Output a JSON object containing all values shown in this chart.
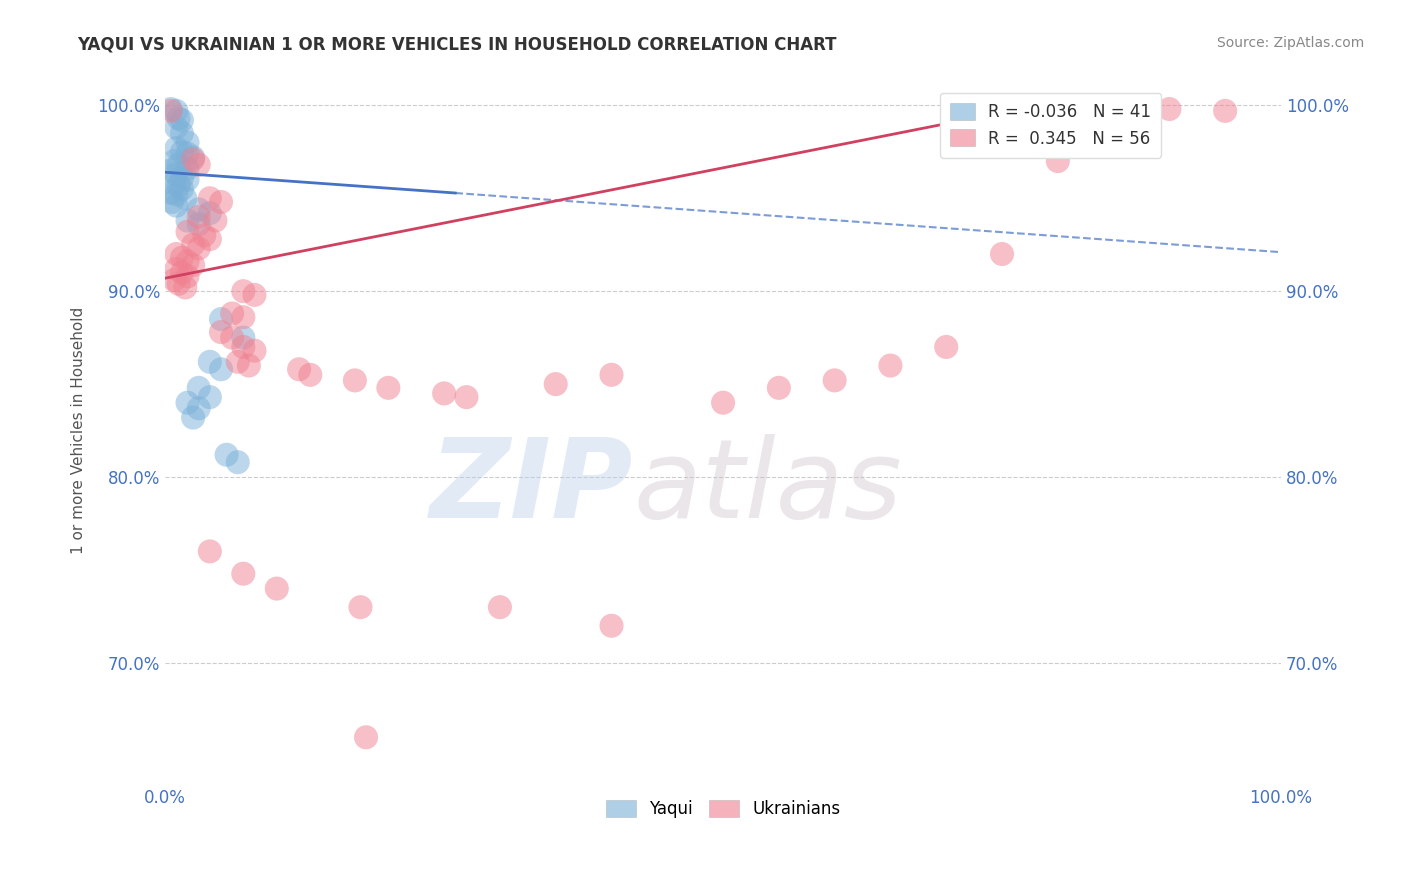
{
  "title": "YAQUI VS UKRAINIAN 1 OR MORE VEHICLES IN HOUSEHOLD CORRELATION CHART",
  "source_text": "Source: ZipAtlas.com",
  "ylabel": "1 or more Vehicles in Household",
  "xlim": [
    0.0,
    100.0
  ],
  "ylim": [
    0.635,
    1.015
  ],
  "yticks": [
    0.7,
    0.8,
    0.9,
    1.0
  ],
  "xticks": [
    0.0,
    100.0
  ],
  "x_tick_labels": [
    "0.0%",
    "100.0%"
  ],
  "y_tick_labels": [
    "70.0%",
    "80.0%",
    "90.0%",
    "100.0%"
  ],
  "yaqui_color": "#7ab0d8",
  "ukrainian_color": "#f08090",
  "trend_yaqui_color": "#4472c4",
  "trend_ukrainian_color": "#d04060",
  "background_color": "#ffffff",
  "grid_color": "#cccccc",
  "watermark_zip_color": "#b8cfe8",
  "watermark_atlas_color": "#c8b8c0",
  "tick_color": "#4472c4",
  "title_color": "#333333",
  "source_color": "#888888",
  "ylabel_color": "#555555",
  "legend_R_yaqui_color": "#1a6aaa",
  "legend_R_ukr_color": "#c03050",
  "legend_N_color": "#1a6aaa",
  "yaqui_R": -0.036,
  "yaqui_N": 41,
  "ukr_R": 0.345,
  "ukr_N": 56,
  "yaqui_trend_start_x": 0.0,
  "yaqui_trend_end_solid_x": 26.0,
  "yaqui_trend_end_x": 100.0,
  "yaqui_trend_start_y": 0.964,
  "yaqui_trend_end_y": 0.921,
  "ukr_trend_start_x": 0.0,
  "ukr_trend_end_x": 80.0,
  "ukr_trend_start_y": 0.907,
  "ukr_trend_end_y": 1.002,
  "yaqui_points": [
    [
      0.5,
      0.998
    ],
    [
      1.0,
      0.997
    ],
    [
      1.2,
      0.993
    ],
    [
      1.5,
      0.992
    ],
    [
      1.0,
      0.988
    ],
    [
      1.5,
      0.985
    ],
    [
      2.0,
      0.98
    ],
    [
      1.0,
      0.977
    ],
    [
      1.5,
      0.975
    ],
    [
      2.0,
      0.974
    ],
    [
      2.5,
      0.972
    ],
    [
      0.8,
      0.97
    ],
    [
      1.2,
      0.968
    ],
    [
      2.0,
      0.966
    ],
    [
      0.5,
      0.965
    ],
    [
      1.0,
      0.963
    ],
    [
      1.5,
      0.961
    ],
    [
      2.0,
      0.96
    ],
    [
      0.8,
      0.958
    ],
    [
      1.2,
      0.957
    ],
    [
      1.5,
      0.955
    ],
    [
      0.5,
      0.953
    ],
    [
      1.0,
      0.952
    ],
    [
      1.8,
      0.95
    ],
    [
      0.6,
      0.948
    ],
    [
      1.0,
      0.946
    ],
    [
      3.0,
      0.944
    ],
    [
      4.0,
      0.942
    ],
    [
      2.0,
      0.938
    ],
    [
      3.0,
      0.936
    ],
    [
      5.0,
      0.885
    ],
    [
      7.0,
      0.875
    ],
    [
      4.0,
      0.862
    ],
    [
      5.0,
      0.858
    ],
    [
      3.0,
      0.848
    ],
    [
      4.0,
      0.843
    ],
    [
      2.0,
      0.84
    ],
    [
      3.0,
      0.837
    ],
    [
      2.5,
      0.832
    ],
    [
      5.5,
      0.812
    ],
    [
      6.5,
      0.808
    ]
  ],
  "ukrainian_points": [
    [
      0.5,
      0.997
    ],
    [
      2.5,
      0.971
    ],
    [
      3.0,
      0.968
    ],
    [
      4.0,
      0.95
    ],
    [
      5.0,
      0.948
    ],
    [
      3.0,
      0.94
    ],
    [
      4.5,
      0.938
    ],
    [
      2.0,
      0.932
    ],
    [
      3.5,
      0.93
    ],
    [
      4.0,
      0.928
    ],
    [
      2.5,
      0.925
    ],
    [
      3.0,
      0.923
    ],
    [
      1.0,
      0.92
    ],
    [
      1.5,
      0.918
    ],
    [
      2.0,
      0.916
    ],
    [
      2.5,
      0.914
    ],
    [
      1.0,
      0.912
    ],
    [
      1.5,
      0.91
    ],
    [
      2.0,
      0.908
    ],
    [
      0.8,
      0.906
    ],
    [
      1.2,
      0.904
    ],
    [
      1.8,
      0.902
    ],
    [
      7.0,
      0.9
    ],
    [
      8.0,
      0.898
    ],
    [
      6.0,
      0.888
    ],
    [
      7.0,
      0.886
    ],
    [
      5.0,
      0.878
    ],
    [
      6.0,
      0.875
    ],
    [
      7.0,
      0.87
    ],
    [
      8.0,
      0.868
    ],
    [
      6.5,
      0.862
    ],
    [
      7.5,
      0.86
    ],
    [
      12.0,
      0.858
    ],
    [
      13.0,
      0.855
    ],
    [
      17.0,
      0.852
    ],
    [
      20.0,
      0.848
    ],
    [
      25.0,
      0.845
    ],
    [
      27.0,
      0.843
    ],
    [
      35.0,
      0.85
    ],
    [
      40.0,
      0.855
    ],
    [
      50.0,
      0.84
    ],
    [
      55.0,
      0.848
    ],
    [
      60.0,
      0.852
    ],
    [
      65.0,
      0.86
    ],
    [
      70.0,
      0.87
    ],
    [
      75.0,
      0.92
    ],
    [
      80.0,
      0.97
    ],
    [
      90.0,
      0.998
    ],
    [
      95.0,
      0.997
    ],
    [
      4.0,
      0.76
    ],
    [
      7.0,
      0.748
    ],
    [
      10.0,
      0.74
    ],
    [
      17.5,
      0.73
    ],
    [
      18.0,
      0.66
    ],
    [
      30.0,
      0.73
    ],
    [
      40.0,
      0.72
    ]
  ]
}
